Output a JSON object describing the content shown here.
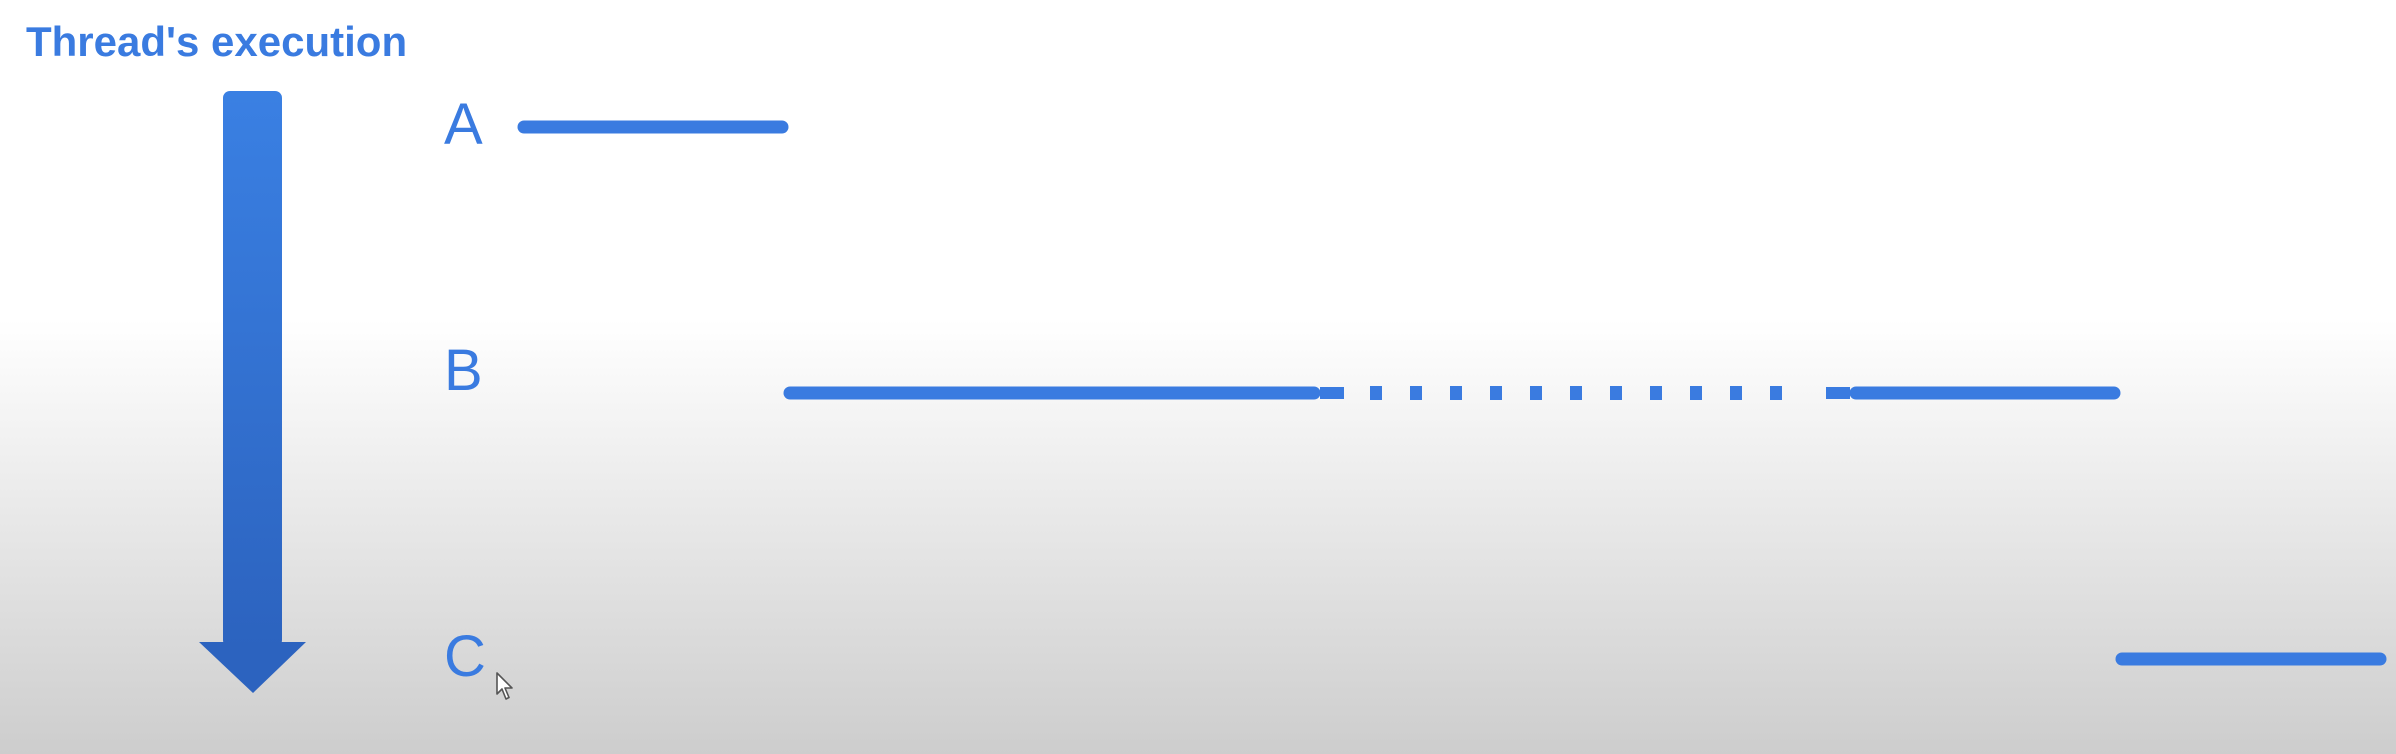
{
  "title": "Thread's execution",
  "colors": {
    "accent": "#3a7be0",
    "arrow_top": "#3a80e3",
    "arrow_bottom": "#2c63bf"
  },
  "threads": [
    {
      "label": "A"
    },
    {
      "label": "B"
    },
    {
      "label": "C"
    }
  ],
  "icons": {
    "cursor": "mouse-pointer-icon",
    "arrow": "down-arrow-icon"
  }
}
